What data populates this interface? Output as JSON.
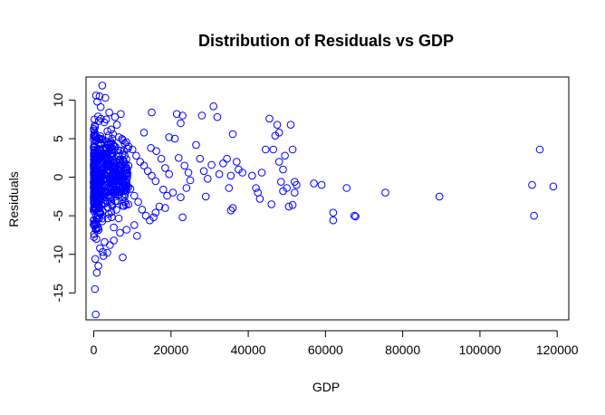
{
  "chart_data": {
    "type": "scatter",
    "title": "Distribution of Residuals vs GDP",
    "xlabel": "GDP",
    "ylabel": "Residuals",
    "xlim": [
      -2000,
      123000
    ],
    "ylim": [
      -18.5,
      13
    ],
    "xticks": [
      0,
      20000,
      40000,
      60000,
      80000,
      100000,
      120000
    ],
    "xtick_labels": [
      "0",
      "20000",
      "40000",
      "60000",
      "80000",
      "100000",
      "120000"
    ],
    "yticks": [
      -15,
      -10,
      -5,
      0,
      5,
      10
    ],
    "ytick_labels": [
      "-15",
      "-10",
      "-5",
      "0",
      "5",
      "10"
    ],
    "marker": "open-circle",
    "color": "#0000ff",
    "points": [
      {
        "x": 500,
        "y": -17.8
      },
      {
        "x": 300,
        "y": -14.5
      },
      {
        "x": 800,
        "y": -12.4
      },
      {
        "x": 1200,
        "y": -11.5
      },
      {
        "x": 400,
        "y": -10.6
      },
      {
        "x": 2500,
        "y": -10.2
      },
      {
        "x": 3500,
        "y": -9.8
      },
      {
        "x": 7500,
        "y": -10.4
      },
      {
        "x": 600,
        "y": 10.6
      },
      {
        "x": 1500,
        "y": 10.5
      },
      {
        "x": 2200,
        "y": 11.9
      },
      {
        "x": 3000,
        "y": 10.3
      },
      {
        "x": 900,
        "y": 9.8
      },
      {
        "x": 1800,
        "y": 9.1
      },
      {
        "x": 4000,
        "y": 8.4
      },
      {
        "x": 5500,
        "y": 7.8
      },
      {
        "x": 7000,
        "y": 8.2
      },
      {
        "x": 3200,
        "y": 7.5
      },
      {
        "x": 6000,
        "y": 6.8
      },
      {
        "x": 4500,
        "y": 6.2
      },
      {
        "x": 5000,
        "y": 5.6
      },
      {
        "x": 6500,
        "y": 5.2
      },
      {
        "x": 7500,
        "y": 4.8
      },
      {
        "x": 8000,
        "y": 4.4
      },
      {
        "x": 9000,
        "y": 4.0
      },
      {
        "x": 10000,
        "y": 3.6
      },
      {
        "x": 11000,
        "y": 2.8
      },
      {
        "x": 12000,
        "y": 2.0
      },
      {
        "x": 13000,
        "y": 1.5
      },
      {
        "x": 14000,
        "y": 0.8
      },
      {
        "x": 15000,
        "y": 0.2
      },
      {
        "x": 16000,
        "y": -0.5
      },
      {
        "x": 9500,
        "y": -1.5
      },
      {
        "x": 10500,
        "y": -2.4
      },
      {
        "x": 11500,
        "y": -3.2
      },
      {
        "x": 12500,
        "y": -4.2
      },
      {
        "x": 13500,
        "y": -5.0
      },
      {
        "x": 14500,
        "y": -5.6
      },
      {
        "x": 10500,
        "y": -6.2
      },
      {
        "x": 11200,
        "y": -7.6
      },
      {
        "x": 8500,
        "y": -6.8
      },
      {
        "x": 6800,
        "y": -7.2
      },
      {
        "x": 5200,
        "y": -8.2
      },
      {
        "x": 4200,
        "y": -8.8
      },
      {
        "x": 2800,
        "y": -8.4
      },
      {
        "x": 1600,
        "y": -9.2
      },
      {
        "x": 700,
        "y": -8.0
      },
      {
        "x": 1100,
        "y": -6.5
      },
      {
        "x": 15000,
        "y": 8.4
      },
      {
        "x": 13000,
        "y": 5.8
      },
      {
        "x": 14800,
        "y": 3.8
      },
      {
        "x": 16200,
        "y": 3.4
      },
      {
        "x": 17500,
        "y": 2.4
      },
      {
        "x": 18500,
        "y": 1.2
      },
      {
        "x": 19500,
        "y": 0.4
      },
      {
        "x": 18000,
        "y": -1.6
      },
      {
        "x": 19000,
        "y": -2.4
      },
      {
        "x": 17000,
        "y": -3.8
      },
      {
        "x": 16000,
        "y": -4.6
      },
      {
        "x": 15500,
        "y": -5.2
      },
      {
        "x": 18500,
        "y": -4.0
      },
      {
        "x": 20500,
        "y": -2.0
      },
      {
        "x": 21000,
        "y": 5.0
      },
      {
        "x": 19500,
        "y": 5.2
      },
      {
        "x": 21500,
        "y": 8.2
      },
      {
        "x": 23000,
        "y": 8.0
      },
      {
        "x": 22500,
        "y": 7.0
      },
      {
        "x": 22000,
        "y": 2.5
      },
      {
        "x": 23500,
        "y": 1.5
      },
      {
        "x": 24500,
        "y": 0.6
      },
      {
        "x": 25000,
        "y": -0.4
      },
      {
        "x": 24000,
        "y": -1.4
      },
      {
        "x": 22500,
        "y": -2.6
      },
      {
        "x": 23000,
        "y": -5.2
      },
      {
        "x": 26500,
        "y": 4.2
      },
      {
        "x": 27500,
        "y": 2.4
      },
      {
        "x": 28500,
        "y": 0.8
      },
      {
        "x": 28000,
        "y": 8.0
      },
      {
        "x": 29500,
        "y": -0.2
      },
      {
        "x": 30500,
        "y": 1.6
      },
      {
        "x": 31000,
        "y": 9.2
      },
      {
        "x": 32000,
        "y": 7.8
      },
      {
        "x": 32500,
        "y": 0.4
      },
      {
        "x": 33500,
        "y": 1.8
      },
      {
        "x": 34500,
        "y": 2.4
      },
      {
        "x": 35000,
        "y": -1.4
      },
      {
        "x": 35500,
        "y": 0.2
      },
      {
        "x": 36000,
        "y": 5.6
      },
      {
        "x": 37000,
        "y": 2.0
      },
      {
        "x": 37500,
        "y": 1.0
      },
      {
        "x": 38500,
        "y": 0.6
      },
      {
        "x": 36000,
        "y": -4.0
      },
      {
        "x": 35500,
        "y": -4.3
      },
      {
        "x": 29000,
        "y": -2.5
      },
      {
        "x": 41000,
        "y": 0.2
      },
      {
        "x": 42000,
        "y": -1.4
      },
      {
        "x": 42500,
        "y": -2.0
      },
      {
        "x": 43000,
        "y": -2.8
      },
      {
        "x": 43500,
        "y": 0.6
      },
      {
        "x": 44500,
        "y": 3.6
      },
      {
        "x": 45500,
        "y": 7.6
      },
      {
        "x": 46500,
        "y": 3.6
      },
      {
        "x": 47000,
        "y": 5.4
      },
      {
        "x": 47500,
        "y": 6.8
      },
      {
        "x": 48000,
        "y": 2.0
      },
      {
        "x": 48500,
        "y": -0.6
      },
      {
        "x": 49000,
        "y": 1.0
      },
      {
        "x": 49500,
        "y": 2.8
      },
      {
        "x": 50000,
        "y": -1.4
      },
      {
        "x": 50500,
        "y": -3.8
      },
      {
        "x": 51000,
        "y": 6.8
      },
      {
        "x": 51500,
        "y": 3.6
      },
      {
        "x": 52000,
        "y": -0.6
      },
      {
        "x": 52500,
        "y": -1.0
      },
      {
        "x": 52000,
        "y": -2.0
      },
      {
        "x": 51500,
        "y": -3.6
      },
      {
        "x": 46000,
        "y": -3.5
      },
      {
        "x": 48000,
        "y": 5.8
      },
      {
        "x": 49000,
        "y": -1.8
      },
      {
        "x": 57000,
        "y": -0.8
      },
      {
        "x": 59000,
        "y": -1.0
      },
      {
        "x": 62000,
        "y": -4.6
      },
      {
        "x": 62000,
        "y": -5.6
      },
      {
        "x": 65500,
        "y": -1.4
      },
      {
        "x": 67500,
        "y": -5.0
      },
      {
        "x": 67800,
        "y": -5.1
      },
      {
        "x": 75500,
        "y": -2.0
      },
      {
        "x": 89500,
        "y": -2.5
      },
      {
        "x": 113500,
        "y": -1.0
      },
      {
        "x": 114000,
        "y": -5.0
      },
      {
        "x": 115500,
        "y": 3.6
      },
      {
        "x": 119000,
        "y": -1.2
      }
    ],
    "dense_cluster": {
      "x_min": 0,
      "x_max": 9000,
      "y_center": 0,
      "y_spread": 6.5,
      "n": 520
    }
  }
}
